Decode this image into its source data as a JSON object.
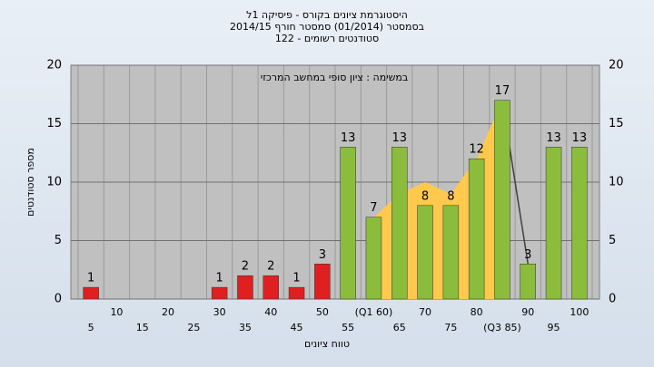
{
  "chart_data": {
    "type": "bar",
    "title": "היסטוגרמת ציונים בקורס - פיסיקה 1ל",
    "subtitle": "בסמסטר  (01/2014)  סמסטר חורף  2014/15",
    "subtitle2": "סטודנטים רשומים - 122",
    "annotation": "במשימה : ציון סופי במחשב המרכזי",
    "x_label": "טווח ציונים",
    "y_label": "מספר סטודנטים",
    "categories": [
      "5",
      "10",
      "15",
      "20",
      "25",
      "30",
      "35",
      "40",
      "45",
      "50",
      "55",
      "(Q1 60)",
      "65",
      "70",
      "75",
      "80",
      "(Q3 85)",
      "90",
      "95",
      "100"
    ],
    "values": [
      1,
      0,
      0,
      0,
      0,
      1,
      2,
      2,
      1,
      3,
      13,
      7,
      13,
      8,
      8,
      12,
      17,
      3,
      13,
      13
    ],
    "bar_colors": [
      "#e02020",
      "#e02020",
      "#e02020",
      "#e02020",
      "#e02020",
      "#e02020",
      "#e02020",
      "#e02020",
      "#e02020",
      "#e02020",
      "#8cbc3c",
      "#8cbc3c",
      "#8cbc3c",
      "#8cbc3c",
      "#8cbc3c",
      "#8cbc3c",
      "#8cbc3c",
      "#8cbc3c",
      "#8cbc3c",
      "#8cbc3c"
    ],
    "area_values": [
      null,
      null,
      null,
      null,
      null,
      null,
      null,
      null,
      null,
      null,
      null,
      7,
      9,
      10,
      9,
      12,
      17,
      null,
      null,
      null
    ],
    "area_color": "#ffc94d",
    "line_values": [
      null,
      null,
      null,
      null,
      null,
      null,
      null,
      null,
      null,
      null,
      null,
      null,
      null,
      null,
      null,
      null,
      17,
      3,
      null,
      null
    ],
    "line_color": "#404040",
    "ylim": [
      0,
      20
    ],
    "yticks": [
      0,
      5,
      10,
      15,
      20
    ],
    "grid": true
  }
}
